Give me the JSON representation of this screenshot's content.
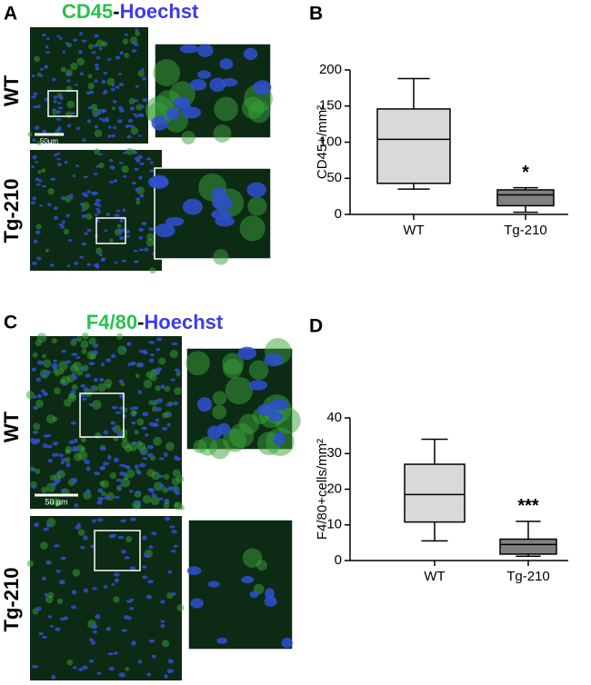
{
  "panels": {
    "a": {
      "label": "A",
      "marker": "CD45",
      "sep": "-",
      "stain": "Hoechst",
      "rows": [
        "WT",
        "Tg-210"
      ],
      "scale": "50µm"
    },
    "b": {
      "label": "B"
    },
    "c": {
      "label": "C",
      "marker": "F4/80",
      "sep": "-",
      "stain": "Hoechst",
      "rows": [
        "WT",
        "Tg-210"
      ],
      "scale": "50 µm"
    },
    "d": {
      "label": "D"
    }
  },
  "chart_data": [
    {
      "type": "box",
      "ylabel": "CD45+/mm²",
      "ylim": [
        0,
        200
      ],
      "yticks": [
        0,
        50,
        100,
        150,
        200
      ],
      "boxes": [
        {
          "name": "WT",
          "color": "#d9d9d9",
          "min": 35,
          "q1": 43,
          "median": 104,
          "q3": 146,
          "max": 188
        },
        {
          "name": "Tg-210",
          "color": "#808080",
          "min": 3,
          "q1": 12,
          "median": 27,
          "q3": 34,
          "max": 37,
          "annotation": "*"
        }
      ]
    },
    {
      "type": "box",
      "ylabel": "F4/80+cells/mm²",
      "ylim": [
        0,
        40
      ],
      "yticks": [
        0,
        10,
        20,
        30,
        40
      ],
      "boxes": [
        {
          "name": "WT",
          "color": "#d9d9d9",
          "min": 5.5,
          "q1": 10.8,
          "median": 18.5,
          "q3": 27,
          "max": 34
        },
        {
          "name": "Tg-210",
          "color": "#808080",
          "min": 1.2,
          "q1": 1.8,
          "median": 4.5,
          "q3": 6,
          "max": 11,
          "annotation": "***"
        }
      ]
    }
  ]
}
